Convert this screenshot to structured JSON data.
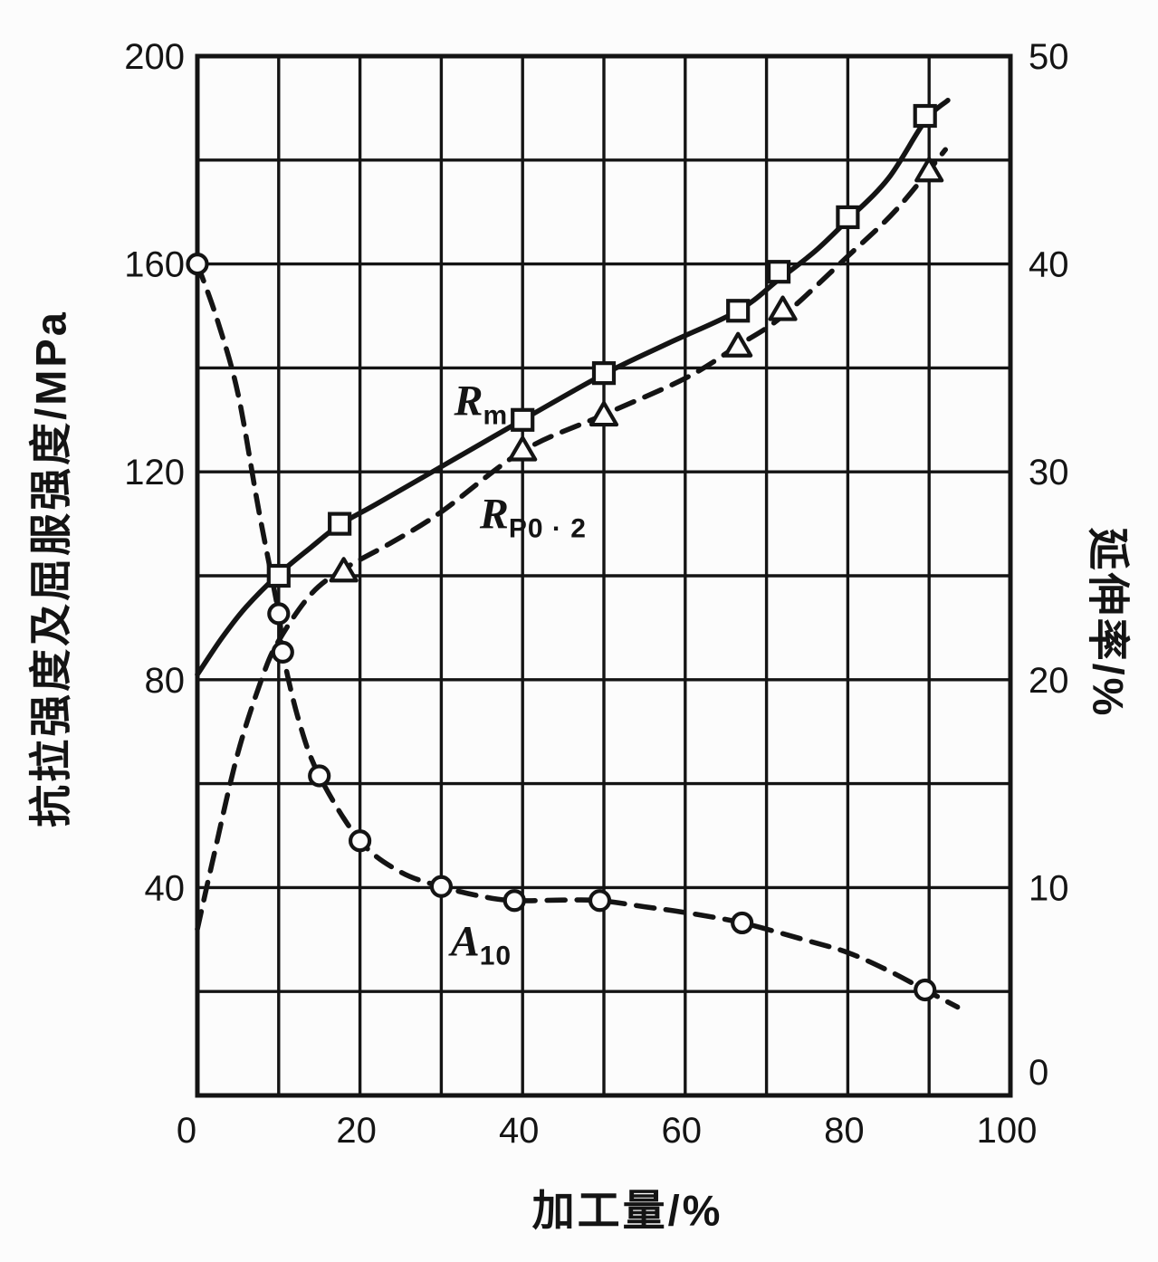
{
  "paper_color": "#fcfcfc",
  "ink_color": "#141414",
  "chart_data": {
    "type": "line",
    "title": "",
    "xlabel": "加工量/%",
    "ylabel_left": "抗拉强度及屈服强度/MPa",
    "ylabel_right": "延伸率/%",
    "xlim": [
      0,
      100
    ],
    "ylim_left": [
      0,
      200
    ],
    "ylim_right": [
      0,
      50
    ],
    "grid": {
      "on": true,
      "x_step": 10,
      "y_step_left": 20
    },
    "x_ticks": [
      0,
      20,
      40,
      60,
      80,
      100
    ],
    "y_left_ticks": [
      200,
      160,
      120,
      80,
      40
    ],
    "y_right_ticks": [
      50,
      40,
      30,
      20,
      10,
      0
    ],
    "legend_position": "labels-on-curves",
    "series": [
      {
        "name": "Rm (tensile strength, MPa)",
        "label_main": "R",
        "label_sub": "m",
        "label_at": [
          34.9,
          133.1
        ],
        "axis": "left",
        "style": "solid",
        "marker": "square",
        "points": [
          [
            10,
            100
          ],
          [
            17.5,
            110
          ],
          [
            40,
            130
          ],
          [
            50,
            139
          ],
          [
            66.5,
            151
          ],
          [
            71.5,
            158.5
          ],
          [
            80,
            169
          ],
          [
            89.5,
            188.5
          ]
        ],
        "path": [
          [
            0,
            81
          ],
          [
            3,
            88
          ],
          [
            6,
            94
          ],
          [
            10,
            100.3
          ],
          [
            14,
            105.5
          ],
          [
            17.5,
            109.8
          ],
          [
            22,
            113.8
          ],
          [
            30,
            121
          ],
          [
            40,
            130
          ],
          [
            50,
            138.8
          ],
          [
            58,
            144.8
          ],
          [
            66.5,
            151
          ],
          [
            71.5,
            157
          ],
          [
            76,
            162.5
          ],
          [
            80,
            168.5
          ],
          [
            85,
            176.5
          ],
          [
            89.5,
            187.5
          ],
          [
            92.3,
            191.5
          ]
        ]
      },
      {
        "name": "Rp0.2 (yield strength, MPa)",
        "label_main": "R",
        "label_sub": "P0 · 2",
        "label_at": [
          41.3,
          111.3
        ],
        "axis": "left",
        "style": "dashed",
        "marker": "triangle",
        "points": [
          [
            18,
            101
          ],
          [
            40,
            124.3
          ],
          [
            50,
            131
          ],
          [
            66.5,
            144.3
          ],
          [
            72,
            151.3
          ],
          [
            90,
            178
          ]
        ],
        "path": [
          [
            0,
            32
          ],
          [
            2,
            46
          ],
          [
            5,
            66
          ],
          [
            8,
            80.5
          ],
          [
            10,
            87.5
          ],
          [
            14,
            96.5
          ],
          [
            18,
            101.3
          ],
          [
            24,
            106.5
          ],
          [
            30,
            112.3
          ],
          [
            40,
            124
          ],
          [
            50,
            131
          ],
          [
            60,
            138
          ],
          [
            66.5,
            144.3
          ],
          [
            72,
            150
          ],
          [
            80,
            161.5
          ],
          [
            86,
            170.5
          ],
          [
            92,
            182
          ]
        ]
      },
      {
        "name": "A10 (elongation, %, right axis x4 scale)",
        "label_main": "A",
        "label_sub": "10",
        "label_at": [
          34.9,
          29.1
        ],
        "axis": "left",
        "style": "dashed",
        "marker": "circle",
        "points": [
          [
            0,
            160
          ],
          [
            10,
            92.7
          ],
          [
            10.5,
            85.3
          ],
          [
            15,
            61.5
          ],
          [
            20,
            49
          ],
          [
            30,
            40.2
          ],
          [
            39,
            37.5
          ],
          [
            49.5,
            37.5
          ],
          [
            67,
            33.2
          ],
          [
            89.5,
            20.3
          ]
        ],
        "points_right_axis_values": [
          40,
          23.2,
          21.3,
          15.4,
          12.3,
          10.1,
          9.4,
          9.4,
          8.3,
          5.1
        ],
        "path": [
          [
            0,
            160
          ],
          [
            2.5,
            149
          ],
          [
            5,
            135
          ],
          [
            7.5,
            113
          ],
          [
            10,
            92.7
          ],
          [
            10.5,
            85.3
          ],
          [
            12.5,
            72
          ],
          [
            15,
            61.5
          ],
          [
            20,
            49
          ],
          [
            25,
            43
          ],
          [
            30,
            40.2
          ],
          [
            35,
            38.3
          ],
          [
            39,
            37.5
          ],
          [
            45,
            37.6
          ],
          [
            49.5,
            37.5
          ],
          [
            55,
            36.3
          ],
          [
            60,
            35.2
          ],
          [
            67,
            33.2
          ],
          [
            75,
            29.8
          ],
          [
            80,
            27.5
          ],
          [
            85,
            24
          ],
          [
            89.5,
            20.3
          ],
          [
            93.5,
            17
          ]
        ]
      }
    ]
  }
}
